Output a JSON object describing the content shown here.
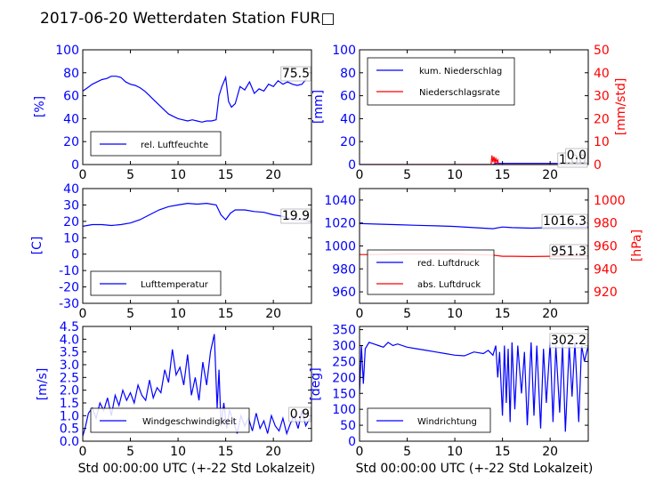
{
  "title": "2017-06-20 Wetterdaten Station FUR□",
  "colors": {
    "left_axis": "#0000ff",
    "right_axis": "#ff0000",
    "series_blue": "#0000ff",
    "series_red": "#ff0000"
  },
  "x_axis": {
    "label": "Std 00:00:00 UTC (+-22 Std Lokalzeit)",
    "ticks": [
      0,
      5,
      10,
      15,
      20
    ],
    "range": [
      0,
      24
    ]
  },
  "chart_data": [
    {
      "type": "line",
      "ylabel": "[%]",
      "ylim": [
        0,
        100
      ],
      "yticks": [
        0,
        20,
        40,
        60,
        80,
        100
      ],
      "current_value_label": "75.5",
      "legend": {
        "placement": "lower-left",
        "entries": [
          "rel. Luftfeuchte"
        ]
      },
      "series": [
        {
          "name": "rel. Luftfeuchte",
          "color": "#0000ff",
          "axis": "left",
          "x": [
            0,
            0.5,
            1,
            1.5,
            2,
            2.5,
            3,
            3.5,
            4,
            4.5,
            5,
            5.5,
            6,
            6.5,
            7,
            7.5,
            8,
            8.5,
            9,
            9.5,
            10,
            10.5,
            11,
            11.5,
            12,
            12.5,
            13,
            13.5,
            14,
            14.3,
            14.6,
            15,
            15.3,
            15.6,
            16,
            16.5,
            17,
            17.5,
            18,
            18.5,
            19,
            19.5,
            20,
            20.5,
            21,
            21.5,
            22,
            22.5,
            23,
            23.5
          ],
          "y": [
            64,
            67,
            70,
            72,
            74,
            75,
            77,
            77,
            76,
            72,
            70,
            69,
            67,
            64,
            60,
            56,
            52,
            48,
            44,
            42,
            40,
            39,
            38,
            39,
            38,
            37,
            38,
            38,
            39,
            60,
            68,
            76,
            55,
            50,
            53,
            68,
            65,
            72,
            62,
            66,
            64,
            70,
            68,
            73,
            70,
            72,
            70,
            69,
            70,
            75
          ]
        }
      ]
    },
    {
      "type": "line",
      "ylabel": "[mm]",
      "ylabel_right": "[mm/std]",
      "ylim": [
        0,
        100
      ],
      "ylim_right": [
        0,
        50
      ],
      "yticks": [
        0,
        20,
        40,
        60,
        80,
        100
      ],
      "yticks_right": [
        0,
        10,
        20,
        30,
        40,
        50
      ],
      "current_value_label": "1.00",
      "current_value_label_2": "0.0",
      "legend": {
        "placement": "upper-left",
        "entries": [
          "kum. Niederschlag",
          "Niederschlagsrate"
        ]
      },
      "series": [
        {
          "name": "kum. Niederschlag",
          "color": "#0000ff",
          "axis": "left",
          "x": [
            0,
            14,
            14.3,
            24
          ],
          "y": [
            0,
            0,
            1,
            1
          ]
        },
        {
          "name": "Niederschlagsrate",
          "color": "#ff0000",
          "axis": "right",
          "x": [
            0,
            13.8,
            13.9,
            14.0,
            14.1,
            14.2,
            14.3,
            14.4,
            14.5,
            14.6,
            14.7,
            24
          ],
          "y": [
            0,
            0,
            4,
            1,
            3.5,
            0.5,
            3,
            1,
            2,
            0,
            0,
            0
          ]
        }
      ]
    },
    {
      "type": "line",
      "ylabel": "[C]",
      "ylim": [
        -30,
        40
      ],
      "yticks": [
        -30,
        -20,
        -10,
        0,
        10,
        20,
        30,
        40
      ],
      "current_value_label": "19.9",
      "legend": {
        "placement": "lower-left",
        "entries": [
          "Lufttemperatur"
        ]
      },
      "series": [
        {
          "name": "Lufttemperatur",
          "color": "#0000ff",
          "axis": "left",
          "x": [
            0,
            1,
            2,
            3,
            4,
            5,
            6,
            7,
            8,
            9,
            10,
            11,
            12,
            13,
            14,
            14.5,
            15,
            15.5,
            16,
            17,
            18,
            19,
            20,
            21,
            22,
            23,
            23.8
          ],
          "y": [
            17,
            18,
            18,
            17.5,
            18,
            19,
            21,
            24,
            27,
            29,
            30,
            31,
            30.5,
            31,
            30,
            24,
            21,
            25,
            27,
            27,
            26,
            25.5,
            24,
            23,
            21,
            21,
            20
          ]
        }
      ]
    },
    {
      "type": "line",
      "ylabel": "",
      "ylabel_right": "[hPa]",
      "ylim": [
        950,
        1050
      ],
      "ylim_right": [
        910,
        1010
      ],
      "yticks": [
        960,
        980,
        1000,
        1020,
        1040
      ],
      "yticks_right": [
        920,
        940,
        960,
        980,
        1000
      ],
      "current_value_label": "1016.3",
      "current_value_label_2": "951.3",
      "legend": {
        "placement": "lower-left",
        "entries": [
          "red. Luftdruck",
          "abs. Luftdruck"
        ]
      },
      "series": [
        {
          "name": "red. Luftdruck",
          "color": "#0000ff",
          "axis": "left",
          "x": [
            0,
            2,
            4,
            6,
            8,
            10,
            12,
            14,
            15,
            16,
            18,
            20,
            22,
            24
          ],
          "y": [
            1019.5,
            1019,
            1018.5,
            1018,
            1017.5,
            1017,
            1016,
            1015,
            1016.5,
            1016,
            1015.5,
            1016,
            1016.3,
            1016.3
          ]
        },
        {
          "name": "abs. Luftdruck",
          "color": "#ff0000",
          "axis": "right",
          "x": [
            0,
            2,
            4,
            6,
            8,
            10,
            12,
            14,
            15,
            16,
            18,
            20,
            22,
            24
          ],
          "y": [
            952.5,
            952.5,
            953,
            953,
            953,
            953,
            952.5,
            952,
            951,
            951,
            950.8,
            951,
            951.3,
            951.3
          ]
        }
      ]
    },
    {
      "type": "line",
      "ylabel": "[m/s]",
      "ylim": [
        0,
        4.5
      ],
      "yticks": [
        0.0,
        0.5,
        1.0,
        1.5,
        2.0,
        2.5,
        3.0,
        3.5,
        4.0,
        4.5
      ],
      "current_value_label": "0.9",
      "legend": {
        "placement": "lower-center",
        "entries": [
          "Windgeschwindigkeit"
        ]
      },
      "series": [
        {
          "name": "Windgeschwindigkeit",
          "color": "#0000ff",
          "axis": "left",
          "x": [
            0,
            0.3,
            0.6,
            1,
            1.4,
            1.8,
            2.2,
            2.6,
            3,
            3.4,
            3.8,
            4.2,
            4.6,
            5,
            5.4,
            5.8,
            6.2,
            6.6,
            7,
            7.4,
            7.8,
            8.2,
            8.6,
            9,
            9.4,
            9.8,
            10.2,
            10.6,
            11,
            11.4,
            11.8,
            12.2,
            12.6,
            13,
            13.4,
            13.8,
            14.1,
            14.3,
            14.5,
            14.8,
            15.1,
            15.4,
            15.8,
            16.2,
            16.6,
            17,
            17.4,
            17.8,
            18.2,
            18.6,
            19,
            19.4,
            19.8,
            20.2,
            20.6,
            21,
            21.4,
            21.8,
            22.2,
            22.6,
            23,
            23.4,
            23.8
          ],
          "y": [
            0.2,
            0.6,
            1.1,
            1.3,
            0.9,
            1.5,
            1.2,
            1.7,
            1.0,
            1.8,
            1.4,
            2.0,
            1.6,
            1.9,
            1.5,
            2.2,
            1.8,
            1.6,
            2.4,
            1.7,
            2.1,
            1.9,
            2.8,
            2.3,
            3.6,
            2.6,
            2.9,
            2.2,
            3.4,
            1.8,
            2.5,
            1.6,
            3.1,
            2.2,
            3.5,
            4.2,
            1.3,
            2.8,
            0.6,
            1.5,
            0.5,
            1.2,
            0.8,
            0.3,
            1.0,
            0.6,
            0.9,
            0.4,
            1.1,
            0.5,
            0.8,
            0.3,
            1.0,
            0.6,
            0.4,
            0.9,
            0.3,
            0.7,
            1.0,
            0.5,
            1.2,
            0.6,
            0.9
          ]
        }
      ]
    },
    {
      "type": "line",
      "ylabel": "[deg]",
      "ylim": [
        0,
        360
      ],
      "yticks": [
        0,
        50,
        100,
        150,
        200,
        250,
        300,
        350
      ],
      "current_value_label": "302.2",
      "legend": {
        "placement": "lower-left",
        "entries": [
          "Windrichtung"
        ]
      },
      "series": [
        {
          "name": "Windrichtung",
          "color": "#0000ff",
          "axis": "left",
          "x": [
            0,
            0.2,
            0.4,
            0.6,
            1,
            1.5,
            2,
            2.5,
            3,
            3.5,
            4,
            5,
            6,
            7,
            8,
            9,
            10,
            11,
            12,
            13,
            13.5,
            14,
            14.3,
            14.5,
            14.7,
            15,
            15.2,
            15.4,
            15.6,
            15.8,
            16,
            16.3,
            16.6,
            17,
            17.3,
            17.6,
            18,
            18.3,
            18.6,
            19,
            19.3,
            19.6,
            20,
            20.3,
            20.6,
            21,
            21.3,
            21.6,
            22,
            22.3,
            22.6,
            23,
            23.3,
            23.6,
            24
          ],
          "y": [
            150,
            300,
            180,
            290,
            310,
            305,
            300,
            295,
            310,
            300,
            305,
            295,
            290,
            285,
            280,
            275,
            270,
            268,
            280,
            275,
            285,
            270,
            300,
            200,
            280,
            80,
            300,
            120,
            290,
            60,
            310,
            100,
            300,
            150,
            280,
            50,
            310,
            80,
            300,
            40,
            290,
            120,
            310,
            60,
            300,
            90,
            305,
            30,
            300,
            140,
            310,
            60,
            300,
            250,
            300
          ]
        }
      ]
    }
  ]
}
